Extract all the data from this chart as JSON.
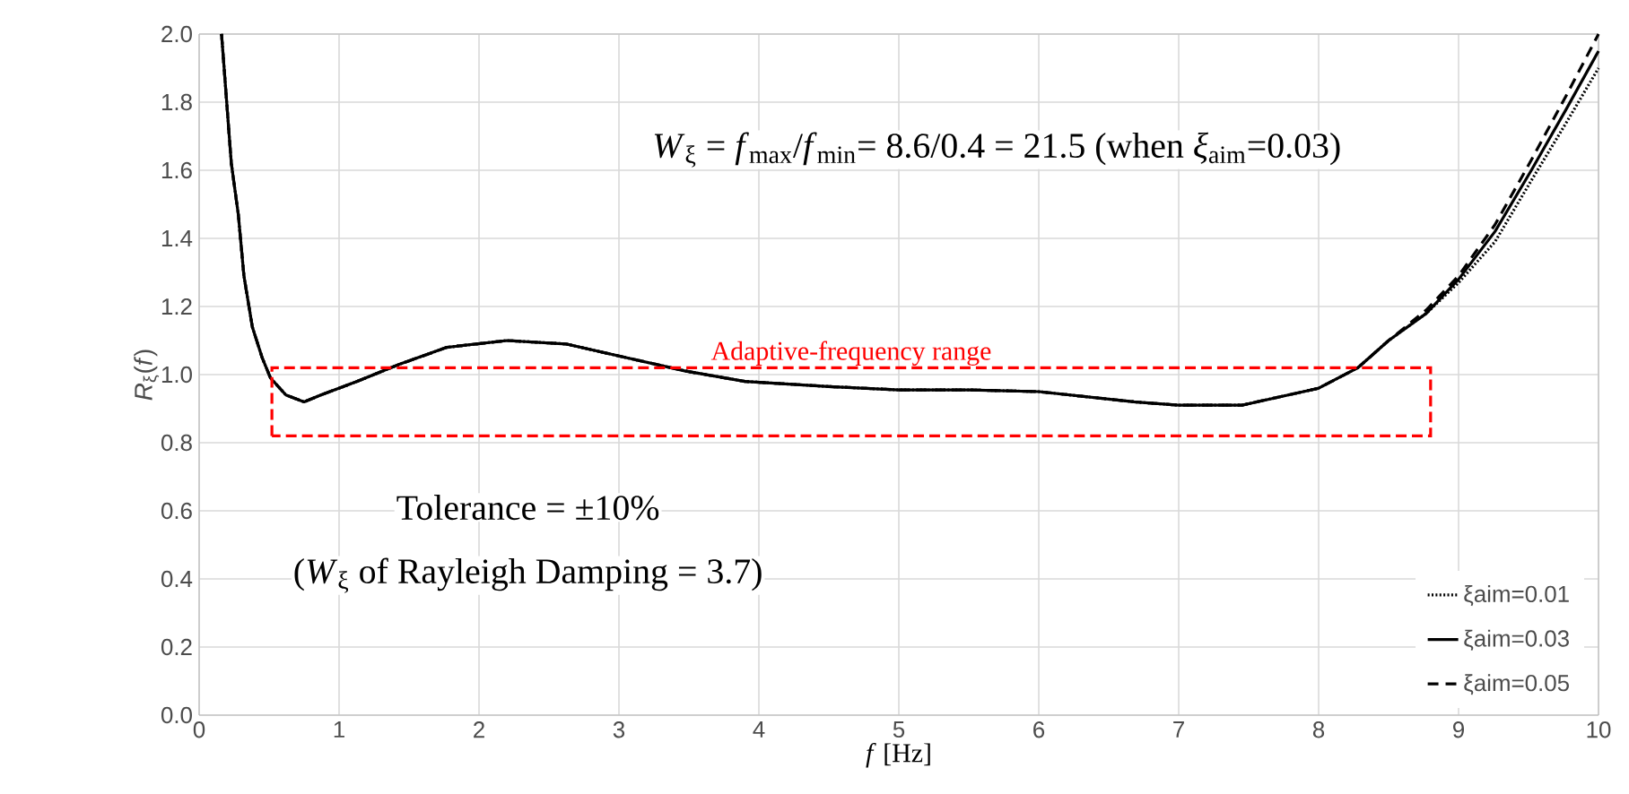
{
  "chart_data": {
    "type": "line",
    "xlabel": "*f* [Hz]",
    "ylabel": "*R*$_{ξ}$(*f*)",
    "x": [
      0.16,
      0.23,
      0.28,
      0.32,
      0.38,
      0.45,
      0.51,
      0.62,
      0.75,
      0.87,
      1.13,
      1.43,
      1.77,
      2.2,
      2.62,
      3.05,
      3.48,
      3.9,
      4.5,
      5,
      5.5,
      6,
      6.68,
      7,
      7.45,
      8,
      8.28,
      8.5,
      8.77,
      9,
      9.26,
      9.52,
      9.77,
      10
    ],
    "series": [
      {
        "name": "ξaim=0.01",
        "color": "#000000",
        "line_style": "dotted",
        "values": [
          2.0,
          1.62,
          1.47,
          1.29,
          1.14,
          1.05,
          0.99,
          0.94,
          0.92,
          0.94,
          0.98,
          1.03,
          1.08,
          1.1,
          1.09,
          1.05,
          1.01,
          0.98,
          0.965,
          0.955,
          0.955,
          0.95,
          0.92,
          0.91,
          0.91,
          0.96,
          1.02,
          1.1,
          1.18,
          1.27,
          1.39,
          1.57,
          1.74,
          1.9
        ]
      },
      {
        "name": "ξaim=0.03",
        "color": "#000000",
        "line_style": "solid",
        "values": [
          2.0,
          1.62,
          1.47,
          1.29,
          1.14,
          1.05,
          0.99,
          0.94,
          0.92,
          0.94,
          0.98,
          1.03,
          1.08,
          1.1,
          1.09,
          1.05,
          1.01,
          0.98,
          0.965,
          0.955,
          0.955,
          0.95,
          0.92,
          0.91,
          0.91,
          0.96,
          1.02,
          1.1,
          1.18,
          1.28,
          1.42,
          1.6,
          1.78,
          1.95
        ]
      },
      {
        "name": "ξaim=0.05",
        "color": "#000000",
        "line_style": "dashed",
        "values": [
          2.0,
          1.62,
          1.47,
          1.29,
          1.14,
          1.05,
          0.99,
          0.94,
          0.92,
          0.94,
          0.98,
          1.03,
          1.08,
          1.1,
          1.09,
          1.05,
          1.01,
          0.98,
          0.965,
          0.955,
          0.955,
          0.95,
          0.92,
          0.91,
          0.91,
          0.96,
          1.02,
          1.1,
          1.19,
          1.29,
          1.44,
          1.63,
          1.82,
          2.0
        ]
      }
    ],
    "xlim": [
      0,
      10
    ],
    "ylim": [
      0,
      2
    ],
    "xticks": [
      0,
      1,
      2,
      3,
      4,
      5,
      6,
      7,
      8,
      9,
      10
    ],
    "yticks": [
      {
        "value": 0,
        "label": "0.0"
      },
      {
        "value": 0.2,
        "label": "0.2"
      },
      {
        "value": 0.4,
        "label": "0.4"
      },
      {
        "value": 0.6,
        "label": "0.6"
      },
      {
        "value": 0.8,
        "label": "0.8"
      },
      {
        "value": 1,
        "label": "1.0"
      },
      {
        "value": 1.2,
        "label": "1.2"
      },
      {
        "value": 1.4,
        "label": "1.4"
      },
      {
        "value": 1.6,
        "label": "1.6"
      },
      {
        "value": 1.8,
        "label": "1.8"
      },
      {
        "value": 2,
        "label": "2.0"
      }
    ],
    "grid": true,
    "legend": "bottom right",
    "marker": "none",
    "annotations": [
      "Adaptive-frequency range",
      "*W*$_{ξ}$ = *f*$_{max}$/*f*$_{min}$= 8.6/0.4 = 21.5 (when *ξ*$_{aim}$=0.03)",
      "Tolerance = ±10%",
      "(*W*$_{ξ}$ of Rayleigh Damping = 3.7)"
    ]
  }
}
